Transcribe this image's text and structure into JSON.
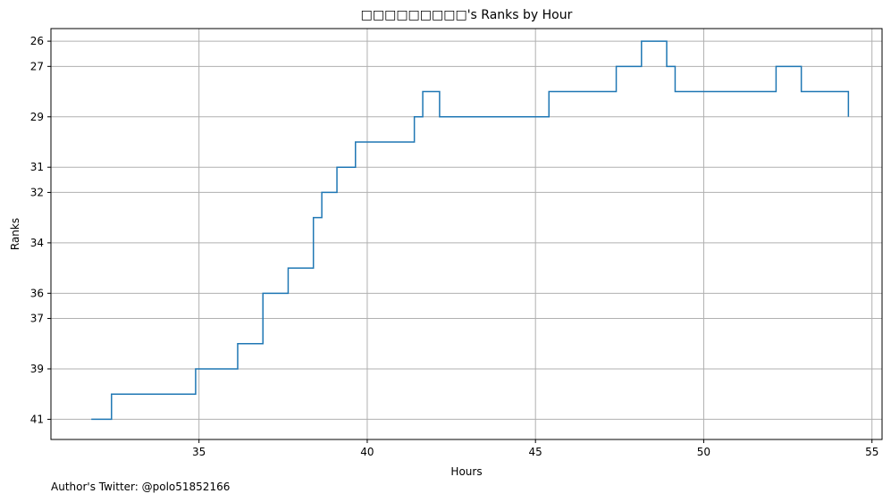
{
  "chart_data": {
    "type": "line",
    "drawstyle": "steps-post",
    "title": "□□□□□□□□□'s Ranks by Hour",
    "xlabel": "Hours",
    "ylabel": "Ranks",
    "grid": true,
    "xlim": [
      30.6,
      55.3
    ],
    "ylim": [
      41.8,
      25.5
    ],
    "x_ticks": [
      35,
      40,
      45,
      50,
      55
    ],
    "y_ticks": [
      26,
      27,
      29,
      31,
      32,
      34,
      36,
      37,
      39,
      41
    ],
    "color": "#1f77b4",
    "series": [
      {
        "x": [
          31.8,
          32.4,
          34.65,
          34.9,
          36.15,
          36.9,
          37.65,
          38.4,
          38.65,
          39.1,
          39.65,
          41.4,
          41.65,
          42.15,
          45.4,
          47.4,
          48.15,
          48.9,
          49.15,
          52.15,
          52.9,
          54.3
        ],
        "y": [
          41,
          40,
          40,
          39,
          38,
          36,
          35,
          33,
          32,
          31,
          30,
          29,
          28,
          29,
          28,
          27,
          26,
          27,
          28,
          27,
          28,
          29
        ]
      }
    ]
  },
  "footnote": "Author's Twitter: @polo51852166"
}
